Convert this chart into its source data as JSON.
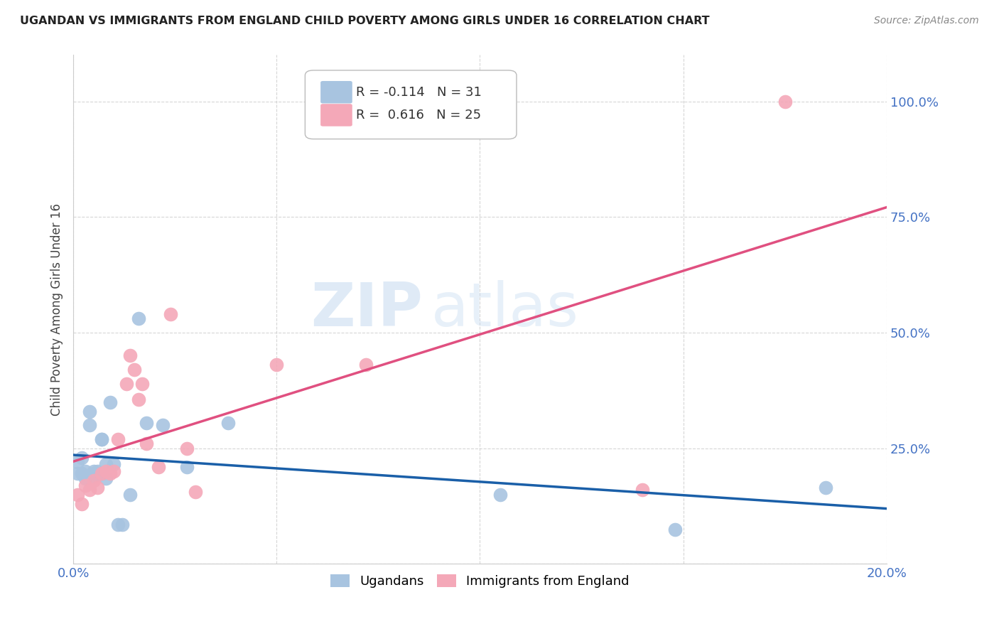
{
  "title": "UGANDAN VS IMMIGRANTS FROM ENGLAND CHILD POVERTY AMONG GIRLS UNDER 16 CORRELATION CHART",
  "source": "Source: ZipAtlas.com",
  "ylabel": "Child Poverty Among Girls Under 16",
  "ytick_values": [
    0.0,
    0.25,
    0.5,
    0.75,
    1.0
  ],
  "ytick_labels": [
    "",
    "25.0%",
    "50.0%",
    "75.0%",
    "100.0%"
  ],
  "xtick_labels": [
    "0.0%",
    "",
    "",
    "",
    "20.0%"
  ],
  "xlim": [
    0.0,
    0.2
  ],
  "ylim": [
    0.0,
    1.1
  ],
  "legend_label1": "Ugandans",
  "legend_label2": "Immigrants from England",
  "R1": -0.114,
  "N1": 31,
  "R2": 0.616,
  "N2": 25,
  "color_ugandan": "#a8c4e0",
  "color_england": "#f4a8b8",
  "color_line_ugandan": "#1a5fa8",
  "color_line_england": "#e05080",
  "watermark_zip": "ZIP",
  "watermark_atlas": "atlas",
  "ugandan_x": [
    0.001,
    0.001,
    0.002,
    0.002,
    0.003,
    0.003,
    0.004,
    0.004,
    0.005,
    0.005,
    0.005,
    0.006,
    0.006,
    0.007,
    0.007,
    0.007,
    0.008,
    0.008,
    0.009,
    0.01,
    0.011,
    0.012,
    0.014,
    0.016,
    0.018,
    0.022,
    0.028,
    0.038,
    0.105,
    0.148,
    0.185
  ],
  "ugandan_y": [
    0.22,
    0.195,
    0.23,
    0.195,
    0.2,
    0.185,
    0.33,
    0.3,
    0.195,
    0.19,
    0.2,
    0.195,
    0.2,
    0.27,
    0.27,
    0.195,
    0.185,
    0.215,
    0.35,
    0.215,
    0.085,
    0.085,
    0.15,
    0.53,
    0.305,
    0.3,
    0.21,
    0.305,
    0.15,
    0.075,
    0.165
  ],
  "england_x": [
    0.001,
    0.002,
    0.003,
    0.004,
    0.005,
    0.006,
    0.007,
    0.008,
    0.009,
    0.01,
    0.011,
    0.013,
    0.014,
    0.015,
    0.016,
    0.017,
    0.018,
    0.021,
    0.024,
    0.028,
    0.03,
    0.05,
    0.072,
    0.14,
    0.175
  ],
  "england_y": [
    0.15,
    0.13,
    0.17,
    0.16,
    0.18,
    0.165,
    0.195,
    0.2,
    0.195,
    0.2,
    0.27,
    0.39,
    0.45,
    0.42,
    0.355,
    0.39,
    0.26,
    0.21,
    0.54,
    0.25,
    0.155,
    0.43,
    0.43,
    0.16,
    1.0
  ]
}
